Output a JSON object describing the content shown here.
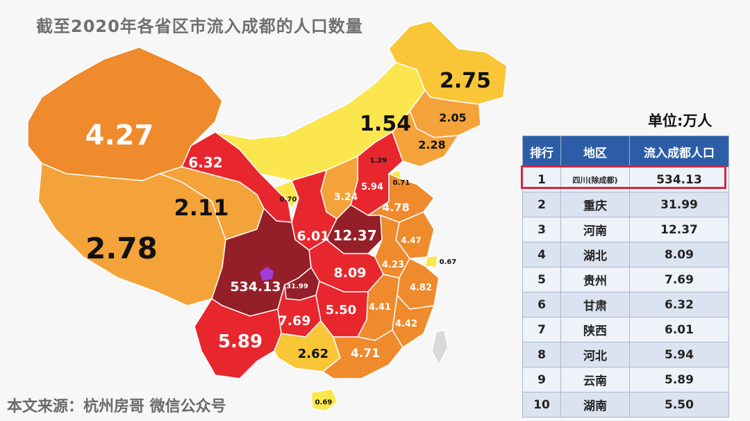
{
  "title": "截至2020年各省区市流入成都的人口数量",
  "unit_label": "单位:万人",
  "source": "本文来源：杭州房哥 微信公众号",
  "colors": {
    "lowest": "#fbe64d",
    "low": "#f8c637",
    "mid": "#f4a33a",
    "orange": "#ef8a2d",
    "red": "#e8262d",
    "darkred": "#951f28",
    "chengdu": "#a43cd8"
  },
  "map_labels": {
    "xinjiang": "4.27",
    "xizang": "2.78",
    "qinghai": "2.11",
    "gansu": "6.32",
    "neimenggu": "1.54",
    "heilongjiang": "2.75",
    "jilin": "2.05",
    "liaoning": "2.28",
    "beijing": "1.29",
    "tianjin": "0.71",
    "hebei": "5.94",
    "ningxia": "0.70",
    "shanxi": "3.24",
    "shandong": "4.78",
    "shaanxi": "6.01",
    "henan": "12.37",
    "jiangsu": "4.47",
    "shanghai": "0.67",
    "anhui": "4.23",
    "hubei": "8.09",
    "sichuan": "534.13",
    "chongqing": "31.99",
    "zhejiang": "4.82",
    "hunan": "5.50",
    "jiangxi": "4.41",
    "fujian": "4.42",
    "guizhou": "7.69",
    "yunnan": "5.89",
    "guangxi": "2.62",
    "guangdong": "4.71",
    "hainan": "0.69"
  },
  "table": {
    "headers": [
      "排行",
      "地区",
      "流入成都人口"
    ],
    "rows": [
      {
        "rank": "1",
        "region": "四川(除成都)",
        "value": "534.13"
      },
      {
        "rank": "2",
        "region": "重庆",
        "value": "31.99"
      },
      {
        "rank": "3",
        "region": "河南",
        "value": "12.37"
      },
      {
        "rank": "4",
        "region": "湖北",
        "value": "8.09"
      },
      {
        "rank": "5",
        "region": "贵州",
        "value": "7.69"
      },
      {
        "rank": "6",
        "region": "甘肃",
        "value": "6.32"
      },
      {
        "rank": "7",
        "region": "陕西",
        "value": "6.01"
      },
      {
        "rank": "8",
        "region": "河北",
        "value": "5.94"
      },
      {
        "rank": "9",
        "region": "云南",
        "value": "5.89"
      },
      {
        "rank": "10",
        "region": "湖南",
        "value": "5.50"
      }
    ]
  }
}
